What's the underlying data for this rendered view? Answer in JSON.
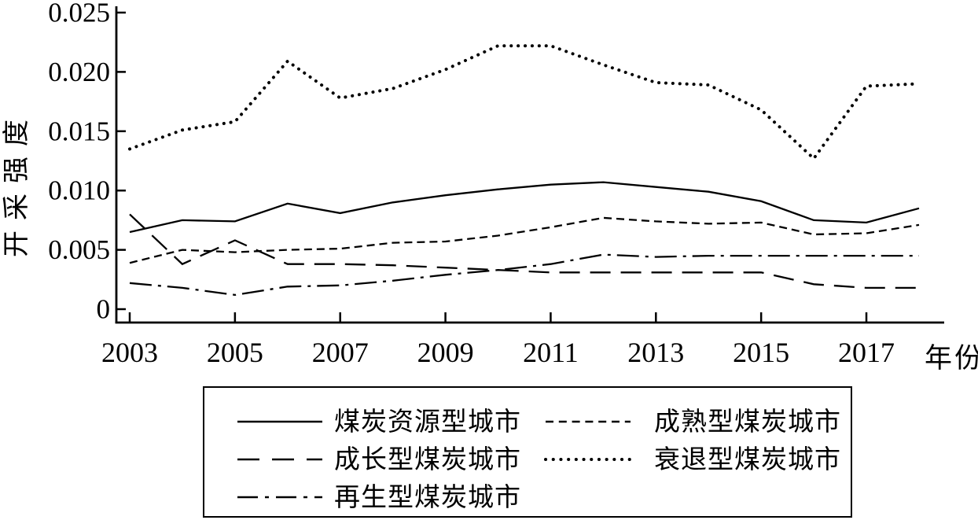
{
  "figure": {
    "background": "#ffffff",
    "ink_color": "#000000"
  },
  "chart_data": {
    "type": "line",
    "title": "",
    "xlabel": "年份",
    "ylabel": "开采强度",
    "x": [
      2003,
      2004,
      2005,
      2006,
      2007,
      2008,
      2009,
      2010,
      2011,
      2012,
      2013,
      2014,
      2015,
      2016,
      2017,
      2018
    ],
    "xticks": [
      2003,
      2005,
      2007,
      2009,
      2011,
      2013,
      2015,
      2017
    ],
    "xtick_labels": [
      "2003",
      "2005",
      "2007",
      "2009",
      "2011",
      "2013",
      "2015",
      "2017"
    ],
    "yticks": [
      0,
      0.005,
      0.01,
      0.015,
      0.02,
      0.025
    ],
    "ytick_labels": [
      "0",
      "0.005",
      "0.010",
      "0.015",
      "0.020",
      "0.025"
    ],
    "xlim": [
      2003,
      2018.5
    ],
    "ylim": [
      0,
      0.025
    ],
    "grid": false,
    "legend_position": "boxed legend below chart, 2 columns",
    "legend_rows": [
      [
        0,
        1
      ],
      [
        2,
        3
      ],
      [
        4
      ]
    ],
    "series": [
      {
        "name": "煤炭资源型城市",
        "line_style": "solid",
        "color": "#000000",
        "values": [
          0.0065,
          0.0075,
          0.0074,
          0.0089,
          0.0081,
          0.009,
          0.0096,
          0.0101,
          0.0105,
          0.0107,
          0.0103,
          0.0099,
          0.0091,
          0.0075,
          0.0073,
          0.0085
        ]
      },
      {
        "name": "成熟型煤炭城市",
        "line_style": "short-dash",
        "color": "#000000",
        "values": [
          0.0039,
          0.005,
          0.0048,
          0.005,
          0.0051,
          0.0056,
          0.0057,
          0.0062,
          0.0069,
          0.0077,
          0.0074,
          0.0072,
          0.0073,
          0.0063,
          0.0064,
          0.0071
        ]
      },
      {
        "name": "成长型煤炭城市",
        "line_style": "long-dash",
        "color": "#000000",
        "values": [
          0.008,
          0.0038,
          0.0058,
          0.0038,
          0.0038,
          0.0037,
          0.0035,
          0.0033,
          0.0031,
          0.0031,
          0.0031,
          0.0031,
          0.0031,
          0.0021,
          0.0018,
          0.0018
        ]
      },
      {
        "name": "衰退型煤炭城市",
        "line_style": "dotted",
        "color": "#000000",
        "values": [
          0.0135,
          0.0151,
          0.0158,
          0.0209,
          0.0178,
          0.0186,
          0.0202,
          0.0222,
          0.0222,
          0.0206,
          0.0191,
          0.0189,
          0.0168,
          0.0127,
          0.0188,
          0.019
        ]
      },
      {
        "name": "再生型煤炭城市",
        "line_style": "dash-dot",
        "color": "#000000",
        "values": [
          0.0022,
          0.0018,
          0.0012,
          0.0019,
          0.002,
          0.0024,
          0.0029,
          0.0033,
          0.0038,
          0.0046,
          0.0044,
          0.0045,
          0.0045,
          0.0045,
          0.0045,
          0.0045
        ]
      }
    ]
  }
}
